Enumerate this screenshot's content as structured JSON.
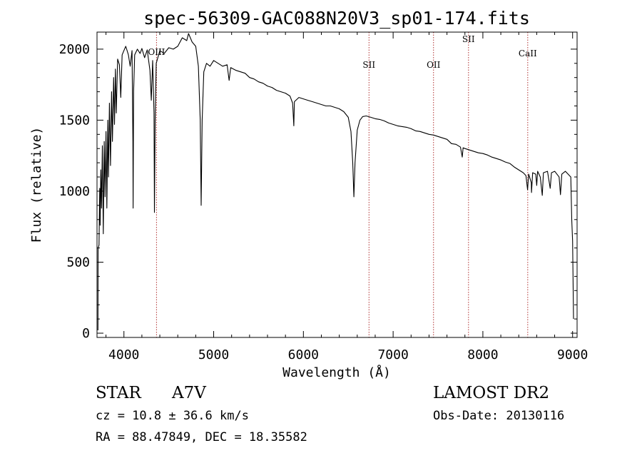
{
  "chart_data": {
    "type": "line",
    "title": "spec-56309-GAC088N20V3_sp01-174.fits",
    "xlabel": "Wavelength (Å)",
    "ylabel": "Flux (relative)",
    "xlim": [
      3700,
      9050
    ],
    "ylim": [
      -30,
      2120
    ],
    "x_ticks": [
      4000,
      5000,
      6000,
      7000,
      8000,
      9000
    ],
    "y_ticks": [
      0,
      500,
      1000,
      1500,
      2000
    ],
    "grid": false,
    "line_color": "#000000",
    "marker_color": "#b03030",
    "spectral_lines": [
      {
        "name": "OIII",
        "wavelength": 4363,
        "label_flux": 1960
      },
      {
        "name": "SII",
        "wavelength": 6731,
        "label_flux": 1870
      },
      {
        "name": "OII",
        "wavelength": 7450,
        "label_flux": 1870
      },
      {
        "name": "SII",
        "wavelength": 7840,
        "label_flux": 2050
      },
      {
        "name": "CaII",
        "wavelength": 8500,
        "label_flux": 1950
      }
    ],
    "series": [
      {
        "points": [
          [
            3710,
            20
          ],
          [
            3712,
            600
          ],
          [
            3722,
            620
          ],
          [
            3730,
            1020
          ],
          [
            3735,
            760
          ],
          [
            3742,
            1150
          ],
          [
            3750,
            880
          ],
          [
            3760,
            1320
          ],
          [
            3770,
            700
          ],
          [
            3780,
            1350
          ],
          [
            3790,
            960
          ],
          [
            3800,
            1420
          ],
          [
            3810,
            880
          ],
          [
            3820,
            1500
          ],
          [
            3828,
            1100
          ],
          [
            3838,
            1620
          ],
          [
            3850,
            1180
          ],
          [
            3862,
            1700
          ],
          [
            3872,
            1350
          ],
          [
            3885,
            1800
          ],
          [
            3895,
            1470
          ],
          [
            3905,
            1860
          ],
          [
            3915,
            1550
          ],
          [
            3930,
            1930
          ],
          [
            3950,
            1890
          ],
          [
            3965,
            1660
          ],
          [
            3980,
            1960
          ],
          [
            4000,
            1990
          ],
          [
            4020,
            2020
          ],
          [
            4050,
            1960
          ],
          [
            4070,
            1880
          ],
          [
            4090,
            1990
          ],
          [
            4100,
            1350
          ],
          [
            4102,
            880
          ],
          [
            4108,
            1700
          ],
          [
            4120,
            1960
          ],
          [
            4150,
            2000
          ],
          [
            4180,
            1970
          ],
          [
            4200,
            2005
          ],
          [
            4230,
            1940
          ],
          [
            4260,
            1995
          ],
          [
            4290,
            1850
          ],
          [
            4305,
            1640
          ],
          [
            4320,
            1920
          ],
          [
            4335,
            1550
          ],
          [
            4340,
            850
          ],
          [
            4348,
            1500
          ],
          [
            4360,
            1900
          ],
          [
            4400,
            1990
          ],
          [
            4450,
            1970
          ],
          [
            4500,
            2010
          ],
          [
            4550,
            2000
          ],
          [
            4600,
            2020
          ],
          [
            4650,
            2080
          ],
          [
            4700,
            2060
          ],
          [
            4720,
            2110
          ],
          [
            4760,
            2050
          ],
          [
            4800,
            2020
          ],
          [
            4830,
            1880
          ],
          [
            4850,
            1500
          ],
          [
            4861,
            900
          ],
          [
            4872,
            1500
          ],
          [
            4890,
            1840
          ],
          [
            4920,
            1900
          ],
          [
            4960,
            1880
          ],
          [
            5000,
            1920
          ],
          [
            5050,
            1900
          ],
          [
            5100,
            1880
          ],
          [
            5150,
            1890
          ],
          [
            5172,
            1780
          ],
          [
            5190,
            1870
          ],
          [
            5250,
            1850
          ],
          [
            5300,
            1840
          ],
          [
            5350,
            1830
          ],
          [
            5400,
            1800
          ],
          [
            5450,
            1790
          ],
          [
            5500,
            1770
          ],
          [
            5550,
            1760
          ],
          [
            5600,
            1740
          ],
          [
            5650,
            1730
          ],
          [
            5700,
            1710
          ],
          [
            5750,
            1700
          ],
          [
            5800,
            1690
          ],
          [
            5850,
            1670
          ],
          [
            5880,
            1620
          ],
          [
            5893,
            1460
          ],
          [
            5900,
            1630
          ],
          [
            5950,
            1660
          ],
          [
            6000,
            1650
          ],
          [
            6050,
            1640
          ],
          [
            6100,
            1630
          ],
          [
            6150,
            1620
          ],
          [
            6200,
            1610
          ],
          [
            6250,
            1600
          ],
          [
            6300,
            1600
          ],
          [
            6350,
            1590
          ],
          [
            6400,
            1580
          ],
          [
            6450,
            1560
          ],
          [
            6500,
            1520
          ],
          [
            6530,
            1420
          ],
          [
            6550,
            1200
          ],
          [
            6563,
            960
          ],
          [
            6575,
            1200
          ],
          [
            6600,
            1430
          ],
          [
            6630,
            1500
          ],
          [
            6660,
            1525
          ],
          [
            6700,
            1530
          ],
          [
            6750,
            1520
          ],
          [
            6800,
            1510
          ],
          [
            6850,
            1505
          ],
          [
            6900,
            1495
          ],
          [
            6950,
            1480
          ],
          [
            7000,
            1470
          ],
          [
            7050,
            1460
          ],
          [
            7100,
            1455
          ],
          [
            7150,
            1450
          ],
          [
            7200,
            1440
          ],
          [
            7250,
            1425
          ],
          [
            7300,
            1420
          ],
          [
            7350,
            1410
          ],
          [
            7400,
            1400
          ],
          [
            7450,
            1395
          ],
          [
            7500,
            1385
          ],
          [
            7550,
            1375
          ],
          [
            7600,
            1365
          ],
          [
            7650,
            1335
          ],
          [
            7700,
            1330
          ],
          [
            7750,
            1310
          ],
          [
            7770,
            1240
          ],
          [
            7780,
            1305
          ],
          [
            7800,
            1300
          ],
          [
            7850,
            1290
          ],
          [
            7900,
            1280
          ],
          [
            7950,
            1270
          ],
          [
            8000,
            1265
          ],
          [
            8050,
            1255
          ],
          [
            8100,
            1240
          ],
          [
            8150,
            1230
          ],
          [
            8200,
            1220
          ],
          [
            8250,
            1205
          ],
          [
            8300,
            1195
          ],
          [
            8350,
            1170
          ],
          [
            8400,
            1150
          ],
          [
            8450,
            1130
          ],
          [
            8480,
            1110
          ],
          [
            8498,
            1010
          ],
          [
            8510,
            1120
          ],
          [
            8540,
            1060
          ],
          [
            8542,
            990
          ],
          [
            8555,
            1130
          ],
          [
            8590,
            1120
          ],
          [
            8600,
            1040
          ],
          [
            8610,
            1140
          ],
          [
            8640,
            1100
          ],
          [
            8662,
            970
          ],
          [
            8675,
            1130
          ],
          [
            8720,
            1140
          ],
          [
            8750,
            1020
          ],
          [
            8765,
            1130
          ],
          [
            8800,
            1140
          ],
          [
            8850,
            1100
          ],
          [
            8865,
            975
          ],
          [
            8880,
            1120
          ],
          [
            8920,
            1140
          ],
          [
            8950,
            1120
          ],
          [
            8980,
            1100
          ],
          [
            8990,
            800
          ],
          [
            9000,
            650
          ],
          [
            9005,
            400
          ],
          [
            9010,
            100
          ]
        ]
      }
    ]
  },
  "footer": {
    "object_class": "STAR",
    "subclass": "A7V",
    "survey": "LAMOST DR2",
    "cz": "cz = 10.8 ± 36.6 km/s",
    "obs_date": "Obs-Date: 20130116",
    "coords": "RA =  88.47849, DEC =  18.35582"
  }
}
